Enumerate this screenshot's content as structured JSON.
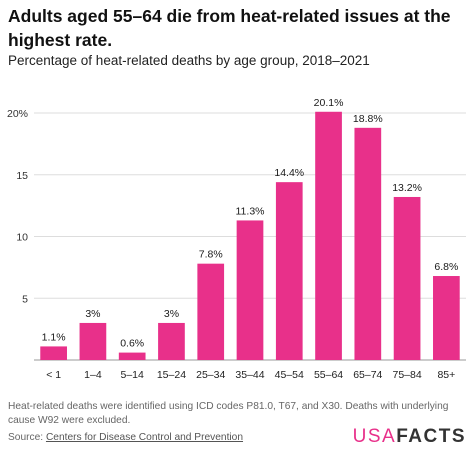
{
  "title": "Adults aged 55–64 die from heat-related issues at the highest rate.",
  "subtitle": "Percentage of heat-related deaths by age group, 2018–2021",
  "footnote": "Heat-related deaths were identified using ICD codes P81.0, T67, and X30. Deaths with underlying cause W92 were excluded.",
  "source": {
    "label": "Source: ",
    "link_text": "Centers for Disease Control and Prevention"
  },
  "logo": {
    "part1": "USA",
    "part2": "FACTS"
  },
  "colors": {
    "bar": "#e8308a",
    "grid": "#dddddd",
    "text": "#1a1a1a"
  },
  "chart_data": {
    "type": "bar",
    "title": "Percentage of heat-related deaths by age group, 2018–2021",
    "xlabel": "",
    "ylabel": "",
    "categories": [
      "< 1",
      "1–4",
      "5–14",
      "15–24",
      "25–34",
      "35–44",
      "45–54",
      "55–64",
      "65–74",
      "75–84",
      "85+"
    ],
    "values": [
      1.1,
      3,
      0.6,
      3,
      7.8,
      11.3,
      14.4,
      20.1,
      18.8,
      13.2,
      6.8
    ],
    "data_labels": [
      "1.1%",
      "3%",
      "0.6%",
      "3%",
      "7.8%",
      "11.3%",
      "14.4%",
      "20.1%",
      "18.8%",
      "13.2%",
      "6.8%"
    ],
    "ylim": [
      0,
      20
    ],
    "yticks": [
      5,
      10,
      15,
      20
    ],
    "ytick_labels": [
      "5",
      "10",
      "15",
      "20%"
    ],
    "grid": true,
    "legend": "none"
  }
}
